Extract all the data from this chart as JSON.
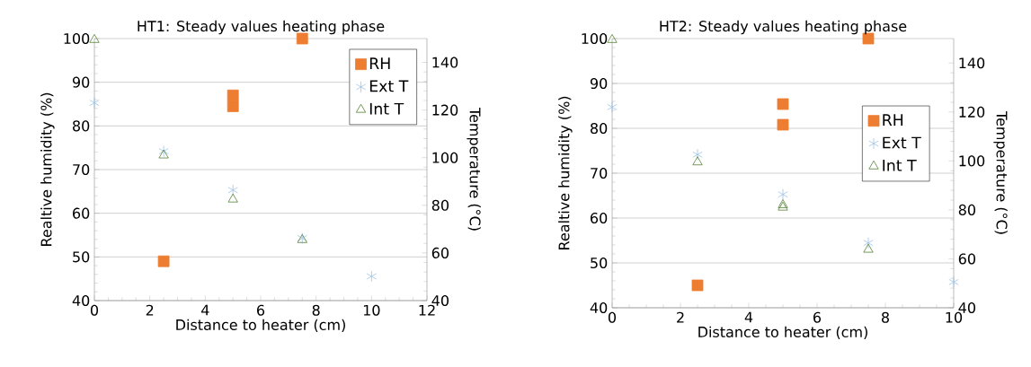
{
  "chart_data": [
    {
      "type": "scatter",
      "title": "HT1: Steady values heating phase",
      "xlabel": "Distance to heater (cm)",
      "ylabel": "Realtive humidity (%)",
      "y2label": "Temperature (°C)",
      "xlim": [
        0,
        12
      ],
      "xticks": [
        0,
        2,
        4,
        6,
        8,
        10,
        12
      ],
      "ylim": [
        40,
        100
      ],
      "yticks": [
        40,
        50,
        60,
        70,
        80,
        90,
        100
      ],
      "y2lim": [
        40,
        150
      ],
      "y2ticks": [
        40,
        60,
        80,
        100,
        120,
        140
      ],
      "grid": "y",
      "legend": "top right",
      "series": [
        {
          "name": "RH",
          "color": "#ed7d31",
          "marker": "square",
          "x": [
            2.5,
            5,
            5,
            7.5
          ],
          "values": [
            49,
            87,
            84.5,
            100
          ]
        },
        {
          "name": "Ext T",
          "color": "#9dc3e6",
          "marker": "cross",
          "axis": "y2",
          "x": [
            0,
            2.5,
            5,
            7.5,
            10
          ],
          "values": [
            123,
            102.7,
            86.4,
            66.2,
            50.2
          ]
        },
        {
          "name": "Int T",
          "color": "#548235",
          "marker": "triangle",
          "axis": "y2",
          "x": [
            0,
            2.5,
            5,
            7.5
          ],
          "values": [
            149.5,
            101,
            82.5,
            65.5
          ]
        }
      ]
    },
    {
      "type": "scatter",
      "title": "HT2: Steady values heating phase",
      "xlabel": "Distance to heater (cm)",
      "ylabel": "Realtive humidity (%)",
      "y2label": "Temperature (°C)",
      "xlim": [
        0,
        10
      ],
      "xticks": [
        0,
        2,
        4,
        6,
        8,
        10
      ],
      "ylim": [
        40,
        100
      ],
      "yticks": [
        40,
        50,
        60,
        70,
        80,
        90,
        100
      ],
      "y2lim": [
        40,
        150
      ],
      "y2ticks": [
        40,
        60,
        80,
        100,
        120,
        140
      ],
      "grid": "y",
      "legend": "right",
      "series": [
        {
          "name": "RH",
          "color": "#ed7d31",
          "marker": "square",
          "x": [
            2.5,
            5,
            5,
            7.5
          ],
          "values": [
            45,
            85.4,
            80.8,
            100
          ]
        },
        {
          "name": "Ext T",
          "color": "#9dc3e6",
          "marker": "cross",
          "axis": "y2",
          "x": [
            0,
            2.5,
            5,
            7.5,
            10
          ],
          "values": [
            122,
            102.6,
            86.3,
            66.5,
            50.5
          ]
        },
        {
          "name": "Int T",
          "color": "#548235",
          "marker": "triangle",
          "axis": "y2",
          "x": [
            0,
            2.5,
            5,
            5,
            7.5
          ],
          "values": [
            149.5,
            99.5,
            82,
            81,
            63.8
          ]
        }
      ]
    }
  ]
}
